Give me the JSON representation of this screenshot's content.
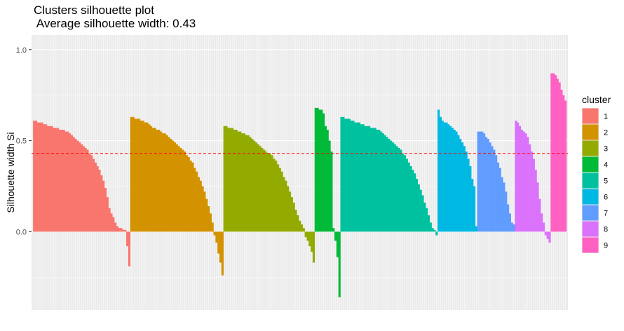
{
  "chart_data": {
    "type": "bar",
    "title": "Clusters silhouette plot",
    "subtitle": " Average silhouette width: 0.43",
    "xlabel": "",
    "ylabel": "Silhouette width Si",
    "ylim": [
      -0.43,
      1.08
    ],
    "yticks": [
      0.0,
      0.5,
      1.0
    ],
    "ytick_labels": [
      "0.0",
      "0.5",
      "1.0"
    ],
    "average_line": 0.43,
    "legend": {
      "title": "cluster",
      "position": "right"
    },
    "grid": true,
    "series": [
      {
        "name": "1",
        "color": "#F8766D",
        "values": [
          0.61,
          0.61,
          0.6,
          0.6,
          0.6,
          0.59,
          0.59,
          0.58,
          0.58,
          0.58,
          0.57,
          0.57,
          0.57,
          0.56,
          0.56,
          0.56,
          0.55,
          0.55,
          0.54,
          0.53,
          0.52,
          0.51,
          0.5,
          0.49,
          0.48,
          0.47,
          0.46,
          0.45,
          0.43,
          0.42,
          0.4,
          0.38,
          0.36,
          0.34,
          0.31,
          0.28,
          0.24,
          0.19,
          0.13,
          0.1,
          0.08,
          0.05,
          0.03,
          0.02,
          0.02,
          0.01,
          0.01,
          -0.08,
          -0.19
        ]
      },
      {
        "name": "2",
        "color": "#D39200",
        "values": [
          0.63,
          0.63,
          0.62,
          0.62,
          0.62,
          0.61,
          0.61,
          0.6,
          0.6,
          0.59,
          0.58,
          0.57,
          0.57,
          0.56,
          0.56,
          0.55,
          0.54,
          0.54,
          0.53,
          0.52,
          0.51,
          0.5,
          0.49,
          0.48,
          0.47,
          0.46,
          0.45,
          0.44,
          0.42,
          0.41,
          0.39,
          0.38,
          0.35,
          0.33,
          0.3,
          0.28,
          0.25,
          0.22,
          0.18,
          0.14,
          0.1,
          0.05,
          -0.02,
          -0.06,
          -0.12,
          -0.17,
          -0.24
        ]
      },
      {
        "name": "3",
        "color": "#93AA00",
        "values": [
          0.58,
          0.58,
          0.57,
          0.57,
          0.57,
          0.56,
          0.56,
          0.55,
          0.55,
          0.54,
          0.54,
          0.53,
          0.53,
          0.52,
          0.51,
          0.5,
          0.49,
          0.48,
          0.47,
          0.46,
          0.45,
          0.44,
          0.43,
          0.43,
          0.42,
          0.4,
          0.39,
          0.37,
          0.35,
          0.33,
          0.3,
          0.28,
          0.25,
          0.22,
          0.19,
          0.16,
          0.12,
          0.09,
          0.06,
          0.04,
          0.02,
          -0.03,
          -0.05,
          -0.08,
          -0.11,
          -0.17
        ]
      },
      {
        "name": "4",
        "color": "#00BA38",
        "values": [
          0.68,
          0.68,
          0.67,
          0.67,
          0.65,
          0.58,
          0.56,
          0.5,
          0.44,
          0.02,
          -0.05,
          -0.14,
          -0.36
        ]
      },
      {
        "name": "5",
        "color": "#00C19F",
        "values": [
          0.63,
          0.63,
          0.62,
          0.62,
          0.62,
          0.61,
          0.61,
          0.6,
          0.6,
          0.6,
          0.59,
          0.59,
          0.58,
          0.58,
          0.58,
          0.57,
          0.57,
          0.57,
          0.56,
          0.56,
          0.55,
          0.54,
          0.53,
          0.52,
          0.51,
          0.5,
          0.49,
          0.48,
          0.47,
          0.46,
          0.45,
          0.43,
          0.42,
          0.4,
          0.38,
          0.36,
          0.34,
          0.32,
          0.29,
          0.26,
          0.23,
          0.2,
          0.16,
          0.13,
          0.09,
          0.05,
          0.02,
          0.01,
          -0.02
        ]
      },
      {
        "name": "6",
        "color": "#00B9E3",
        "values": [
          0.67,
          0.63,
          0.61,
          0.6,
          0.6,
          0.59,
          0.58,
          0.57,
          0.56,
          0.55,
          0.53,
          0.51,
          0.49,
          0.47,
          0.44,
          0.4,
          0.36,
          0.29,
          0.25,
          0.03
        ]
      },
      {
        "name": "7",
        "color": "#619CFF",
        "values": [
          0.55,
          0.55,
          0.55,
          0.54,
          0.52,
          0.51,
          0.49,
          0.47,
          0.45,
          0.42,
          0.38,
          0.35,
          0.3,
          0.27,
          0.22,
          0.15,
          0.1,
          0.05,
          0.04
        ]
      },
      {
        "name": "8",
        "color": "#DB72FB",
        "values": [
          0.61,
          0.6,
          0.58,
          0.56,
          0.55,
          0.54,
          0.52,
          0.48,
          0.44,
          0.4,
          0.34,
          0.27,
          0.18,
          0.1,
          0.05,
          -0.02,
          -0.04,
          -0.06
        ]
      },
      {
        "name": "9",
        "color": "#FF61C3",
        "values": [
          0.87,
          0.87,
          0.86,
          0.84,
          0.82,
          0.78,
          0.75,
          0.72
        ]
      }
    ]
  }
}
